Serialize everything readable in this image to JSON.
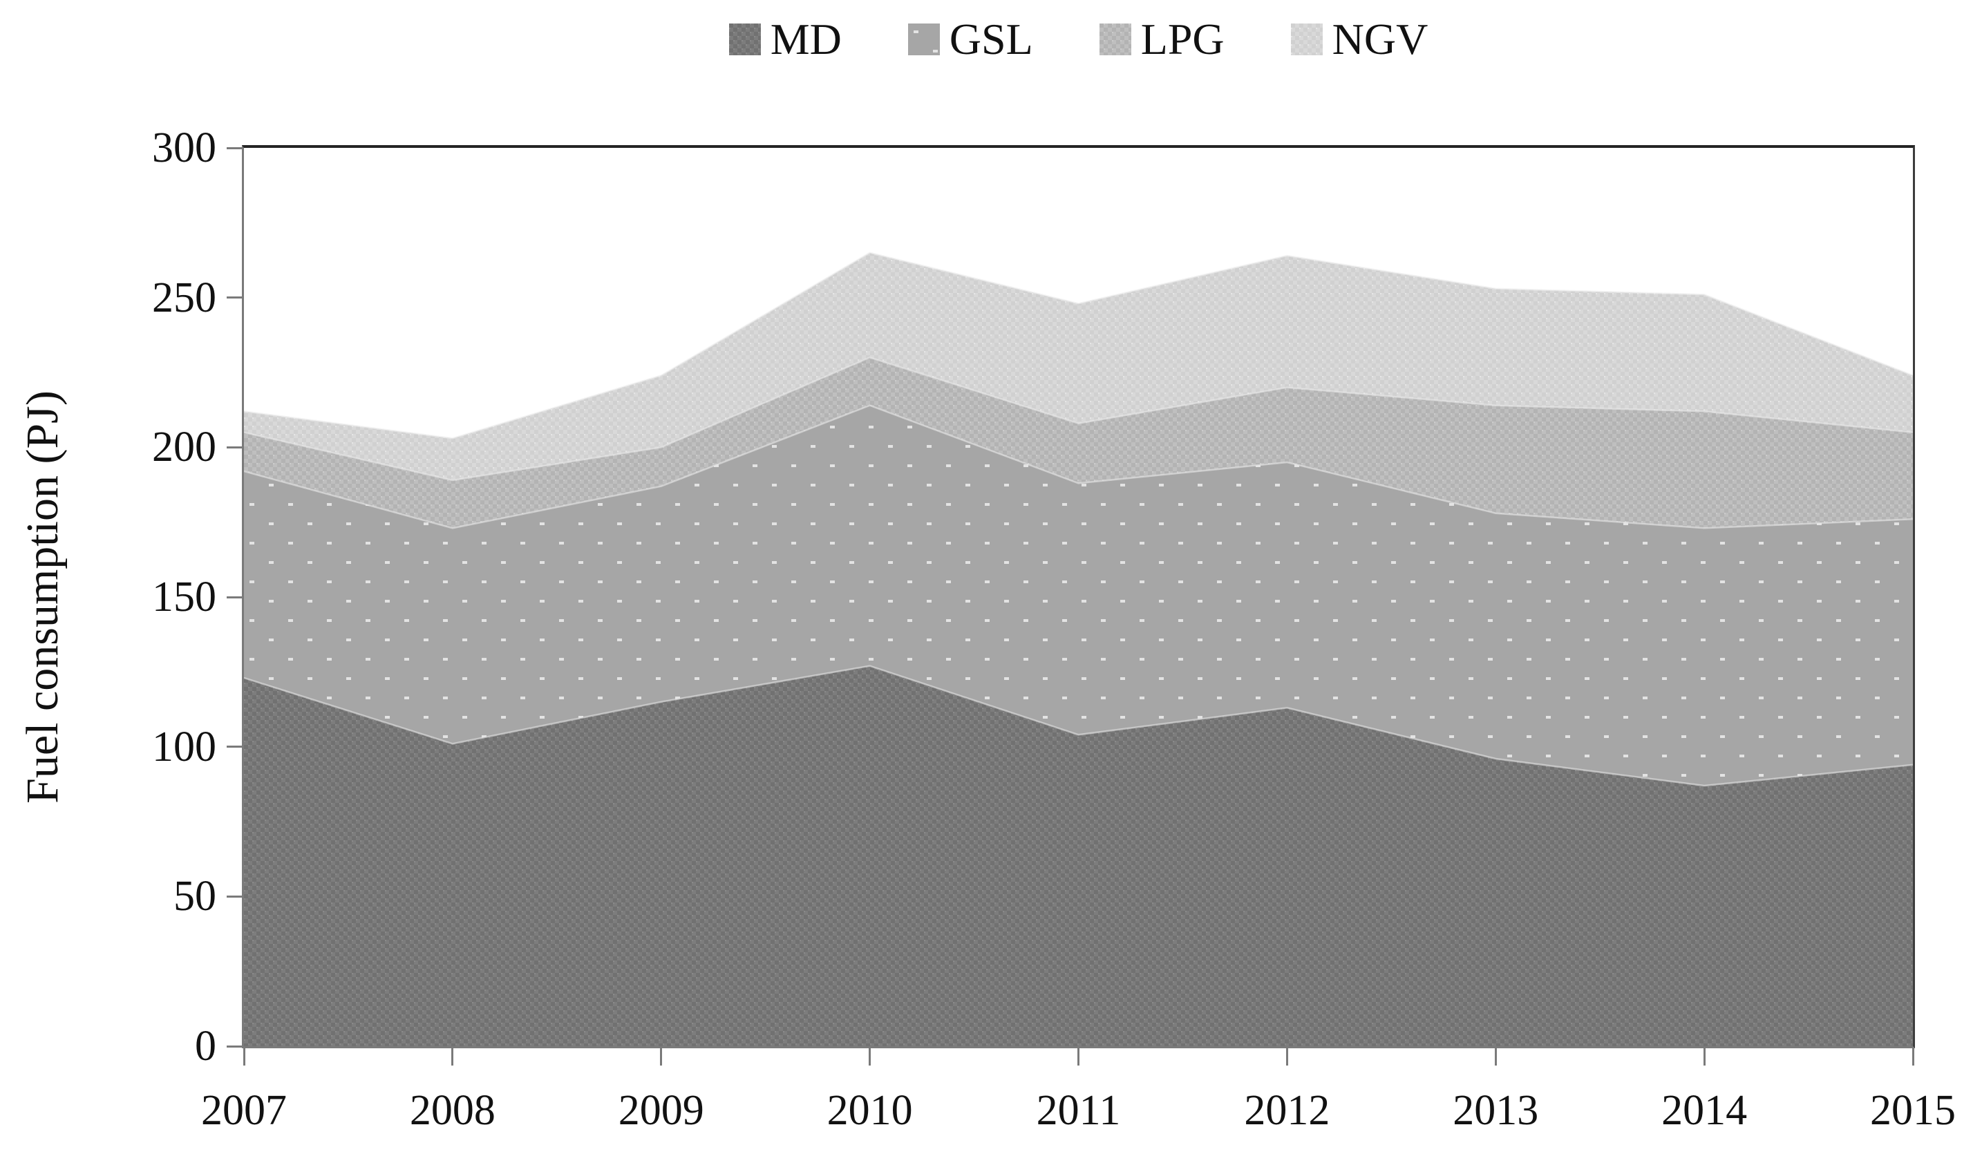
{
  "legend": {
    "items": [
      {
        "label": "MD",
        "color": "#7d7d7d",
        "pattern": "pat-md"
      },
      {
        "label": "GSL",
        "color": "#a6a6a6",
        "pattern": "pat-gsl"
      },
      {
        "label": "LPG",
        "color": "#bfbfbf",
        "pattern": "pat-lpg"
      },
      {
        "label": "NGV",
        "color": "#d9d9d9",
        "pattern": "pat-ngv"
      }
    ]
  },
  "y_axis": {
    "label": "Fuel consumption (PJ)",
    "ticks": [
      0,
      50,
      100,
      150,
      200,
      250,
      300
    ]
  },
  "x_axis": {
    "ticks": [
      "2007",
      "2008",
      "2009",
      "2010",
      "2011",
      "2012",
      "2013",
      "2014",
      "2015"
    ]
  },
  "chart_data": {
    "type": "area",
    "stacked": true,
    "x": [
      2007,
      2008,
      2009,
      2010,
      2011,
      2012,
      2013,
      2014,
      2015
    ],
    "series": [
      {
        "name": "MD",
        "color": "#7d7d7d",
        "pattern": "pat-md",
        "values": [
          123,
          101,
          115,
          127,
          104,
          113,
          96,
          87,
          94
        ]
      },
      {
        "name": "GSL",
        "color": "#a6a6a6",
        "pattern": "pat-gsl",
        "values": [
          69,
          72,
          72,
          87,
          84,
          82,
          82,
          86,
          82
        ]
      },
      {
        "name": "LPG",
        "color": "#bfbfbf",
        "pattern": "pat-lpg",
        "values": [
          13,
          16,
          13,
          16,
          20,
          25,
          36,
          39,
          29
        ]
      },
      {
        "name": "NGV",
        "color": "#d9d9d9",
        "pattern": "pat-ngv",
        "values": [
          7,
          14,
          24,
          35,
          40,
          44,
          39,
          39,
          19
        ]
      }
    ],
    "stacked_totals": {
      "MD_top": [
        123,
        101,
        115,
        127,
        104,
        113,
        96,
        87,
        94
      ],
      "GSL_top": [
        192,
        173,
        187,
        214,
        188,
        195,
        178,
        173,
        176
      ],
      "LPG_top": [
        205,
        189,
        200,
        230,
        208,
        220,
        214,
        212,
        205
      ],
      "NGV_top": [
        212,
        203,
        224,
        265,
        248,
        264,
        253,
        251,
        224
      ]
    },
    "title": "",
    "xlabel": "",
    "ylabel": "Fuel consumption (PJ)",
    "ylim": [
      0,
      300
    ],
    "grid": false,
    "legend_position": "top-center"
  }
}
